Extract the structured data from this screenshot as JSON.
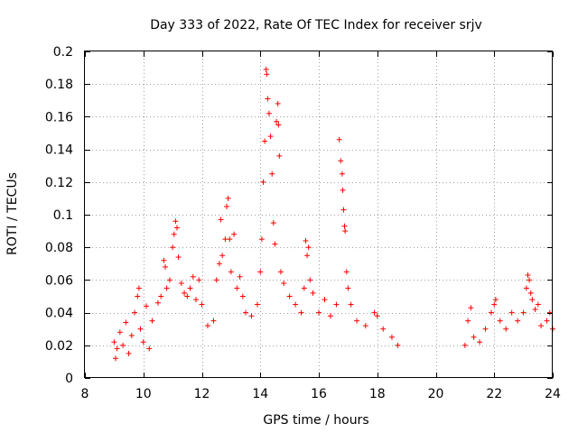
{
  "chart_data": {
    "type": "scatter",
    "title": "Day 333 of 2022, Rate Of TEC Index for receiver srjv",
    "xlabel": "GPS time / hours",
    "ylabel": "ROTI / TECUs",
    "xlim": [
      8,
      24
    ],
    "ylim": [
      0,
      0.2
    ],
    "xticks": [
      "8",
      "10",
      "12",
      "14",
      "16",
      "18",
      "20",
      "22",
      "24"
    ],
    "yticks": [
      "0",
      "0.02",
      "0.04",
      "0.06",
      "0.08",
      "0.1",
      "0.12",
      "0.14",
      "0.16",
      "0.18",
      "0.2"
    ],
    "grid": true,
    "marker": "+",
    "color": "#ff0000",
    "series": [
      {
        "name": "ROTI",
        "points": [
          [
            9.0,
            0.022
          ],
          [
            9.05,
            0.012
          ],
          [
            9.1,
            0.018
          ],
          [
            9.2,
            0.028
          ],
          [
            9.3,
            0.02
          ],
          [
            9.4,
            0.034
          ],
          [
            9.5,
            0.015
          ],
          [
            9.6,
            0.026
          ],
          [
            9.7,
            0.04
          ],
          [
            9.8,
            0.05
          ],
          [
            9.85,
            0.055
          ],
          [
            9.9,
            0.03
          ],
          [
            10.0,
            0.022
          ],
          [
            10.1,
            0.044
          ],
          [
            10.2,
            0.018
          ],
          [
            10.3,
            0.035
          ],
          [
            10.5,
            0.046
          ],
          [
            10.6,
            0.05
          ],
          [
            10.7,
            0.072
          ],
          [
            10.75,
            0.068
          ],
          [
            10.8,
            0.055
          ],
          [
            10.9,
            0.06
          ],
          [
            11.0,
            0.08
          ],
          [
            11.05,
            0.088
          ],
          [
            11.1,
            0.096
          ],
          [
            11.15,
            0.092
          ],
          [
            11.2,
            0.074
          ],
          [
            11.3,
            0.058
          ],
          [
            11.4,
            0.052
          ],
          [
            11.5,
            0.05
          ],
          [
            11.6,
            0.055
          ],
          [
            11.7,
            0.062
          ],
          [
            11.8,
            0.048
          ],
          [
            11.9,
            0.06
          ],
          [
            12.0,
            0.045
          ],
          [
            12.2,
            0.032
          ],
          [
            12.4,
            0.035
          ],
          [
            12.5,
            0.06
          ],
          [
            12.6,
            0.07
          ],
          [
            12.65,
            0.097
          ],
          [
            12.7,
            0.075
          ],
          [
            12.8,
            0.085
          ],
          [
            12.85,
            0.105
          ],
          [
            12.9,
            0.11
          ],
          [
            12.95,
            0.085
          ],
          [
            13.0,
            0.065
          ],
          [
            13.1,
            0.088
          ],
          [
            13.2,
            0.055
          ],
          [
            13.3,
            0.062
          ],
          [
            13.4,
            0.05
          ],
          [
            13.5,
            0.04
          ],
          [
            13.7,
            0.038
          ],
          [
            13.9,
            0.045
          ],
          [
            14.0,
            0.065
          ],
          [
            14.05,
            0.085
          ],
          [
            14.1,
            0.12
          ],
          [
            14.15,
            0.145
          ],
          [
            14.2,
            0.189
          ],
          [
            14.22,
            0.186
          ],
          [
            14.25,
            0.171
          ],
          [
            14.3,
            0.162
          ],
          [
            14.35,
            0.148
          ],
          [
            14.4,
            0.125
          ],
          [
            14.45,
            0.095
          ],
          [
            14.5,
            0.082
          ],
          [
            14.55,
            0.157
          ],
          [
            14.6,
            0.168
          ],
          [
            14.62,
            0.155
          ],
          [
            14.65,
            0.136
          ],
          [
            14.7,
            0.065
          ],
          [
            14.8,
            0.058
          ],
          [
            15.0,
            0.05
          ],
          [
            15.2,
            0.045
          ],
          [
            15.4,
            0.04
          ],
          [
            15.5,
            0.055
          ],
          [
            15.55,
            0.084
          ],
          [
            15.6,
            0.075
          ],
          [
            15.65,
            0.08
          ],
          [
            15.7,
            0.06
          ],
          [
            15.8,
            0.052
          ],
          [
            16.0,
            0.04
          ],
          [
            16.2,
            0.048
          ],
          [
            16.4,
            0.038
          ],
          [
            16.6,
            0.045
          ],
          [
            16.7,
            0.146
          ],
          [
            16.75,
            0.133
          ],
          [
            16.8,
            0.125
          ],
          [
            16.82,
            0.115
          ],
          [
            16.85,
            0.103
          ],
          [
            16.88,
            0.093
          ],
          [
            16.9,
            0.09
          ],
          [
            16.95,
            0.065
          ],
          [
            17.0,
            0.055
          ],
          [
            17.1,
            0.045
          ],
          [
            17.3,
            0.035
          ],
          [
            17.6,
            0.032
          ],
          [
            17.9,
            0.04
          ],
          [
            18.0,
            0.038
          ],
          [
            18.2,
            0.03
          ],
          [
            18.5,
            0.025
          ],
          [
            18.7,
            0.02
          ],
          [
            21.0,
            0.02
          ],
          [
            21.1,
            0.035
          ],
          [
            21.2,
            0.043
          ],
          [
            21.3,
            0.025
          ],
          [
            21.5,
            0.022
          ],
          [
            21.7,
            0.03
          ],
          [
            21.9,
            0.04
          ],
          [
            22.0,
            0.045
          ],
          [
            22.05,
            0.048
          ],
          [
            22.2,
            0.035
          ],
          [
            22.4,
            0.03
          ],
          [
            22.6,
            0.04
          ],
          [
            22.8,
            0.035
          ],
          [
            23.0,
            0.04
          ],
          [
            23.1,
            0.055
          ],
          [
            23.15,
            0.063
          ],
          [
            23.2,
            0.06
          ],
          [
            23.25,
            0.052
          ],
          [
            23.3,
            0.048
          ],
          [
            23.4,
            0.042
          ],
          [
            23.5,
            0.045
          ],
          [
            23.6,
            0.032
          ],
          [
            23.8,
            0.035
          ],
          [
            23.9,
            0.04
          ],
          [
            24.0,
            0.03
          ]
        ]
      }
    ]
  }
}
